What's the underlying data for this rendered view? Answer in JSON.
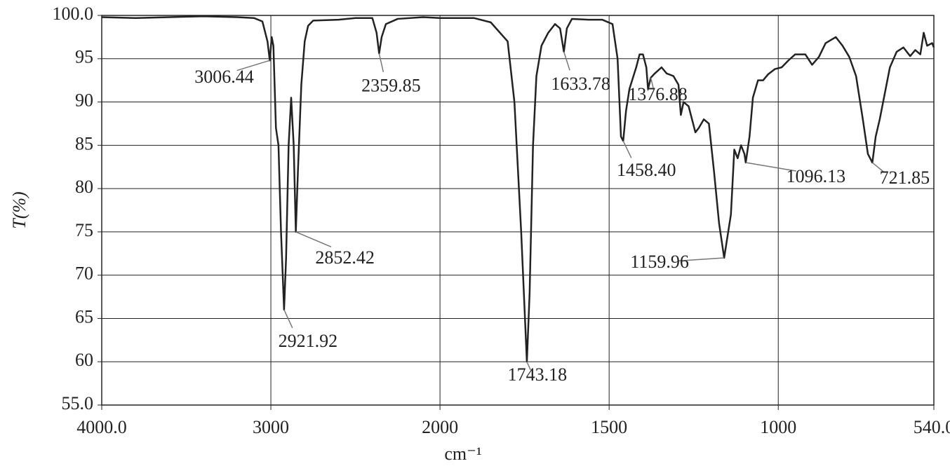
{
  "chart_data": {
    "type": "line",
    "x_label": "cm⁻¹",
    "y_label": "T(%)",
    "xlim": [
      4000,
      540
    ],
    "ylim": [
      55,
      100
    ],
    "x_scale_change": {
      "at": 2000,
      "factor": 2
    },
    "xticks": [
      {
        "value": 4000,
        "label": "4000.0"
      },
      3000,
      2000,
      1500,
      1000,
      {
        "value": 540,
        "label": "540.0"
      }
    ],
    "yticks": [
      {
        "value": 55,
        "label": "55.0"
      },
      60,
      65,
      70,
      75,
      80,
      85,
      90,
      95,
      {
        "value": 100,
        "label": "100.0"
      }
    ],
    "grid": true,
    "x": [
      4000,
      3800,
      3600,
      3400,
      3200,
      3100,
      3050,
      3020,
      3006.44,
      2995,
      2985,
      2970,
      2955,
      2940,
      2921.92,
      2910,
      2895,
      2880,
      2865,
      2852.42,
      2840,
      2820,
      2800,
      2780,
      2750,
      2600,
      2500,
      2400,
      2375,
      2359.85,
      2345,
      2320,
      2250,
      2100,
      2000,
      1900,
      1850,
      1800,
      1780,
      1760,
      1743.18,
      1735,
      1725,
      1715,
      1700,
      1680,
      1660,
      1645,
      1633.78,
      1625,
      1610,
      1560,
      1520,
      1490,
      1475,
      1465,
      1458.4,
      1450,
      1440,
      1420,
      1410,
      1400,
      1390,
      1385,
      1376.88,
      1365,
      1345,
      1330,
      1310,
      1295,
      1288,
      1280,
      1265,
      1245,
      1235,
      1220,
      1205,
      1190,
      1175,
      1159.96,
      1150,
      1140,
      1130,
      1120,
      1110,
      1100,
      1096.13,
      1085,
      1075,
      1060,
      1045,
      1030,
      1010,
      990,
      970,
      950,
      920,
      900,
      880,
      860,
      830,
      810,
      790,
      770,
      750,
      735,
      721.85,
      712,
      700,
      685,
      670,
      650,
      630,
      610,
      595,
      580,
      570,
      560,
      545,
      540
    ],
    "series": [
      {
        "color": "#222222",
        "values": [
          99.8,
          99.7,
          99.8,
          99.9,
          99.8,
          99.7,
          99.3,
          97,
          94.8,
          97.5,
          96.5,
          87,
          85,
          75,
          66,
          72,
          85,
          90.5,
          85,
          75,
          82,
          92,
          97,
          98.8,
          99.4,
          99.5,
          99.7,
          99.7,
          98,
          95.6,
          97.5,
          99,
          99.6,
          99.8,
          99.7,
          99.7,
          99.2,
          97,
          90,
          75,
          60,
          68,
          85,
          93,
          96.5,
          98,
          99,
          98.5,
          95.8,
          98.5,
          99.6,
          99.5,
          99.5,
          99,
          95,
          86,
          85.5,
          89,
          91.5,
          94,
          95.5,
          95.5,
          94,
          91.5,
          92.8,
          93.3,
          94,
          93.3,
          93,
          92,
          88.5,
          90,
          89.5,
          86.5,
          87,
          88,
          87.5,
          82,
          76,
          72,
          74.5,
          77,
          84.5,
          83.5,
          85,
          84,
          83,
          86,
          90.5,
          92.5,
          92.5,
          93.2,
          93.8,
          94,
          94.8,
          95.5,
          95.5,
          94.3,
          95.2,
          96.8,
          97.5,
          96.5,
          95.2,
          93,
          88,
          84,
          83,
          86,
          88,
          91,
          94,
          95.8,
          96.3,
          95.3,
          96,
          95.5,
          98,
          96.5,
          96.8,
          96.3
        ]
      }
    ],
    "annotations": [
      {
        "text": "3006.44",
        "x": 3006.44,
        "y": 94.8
      },
      {
        "text": "2921.92",
        "x": 2921.92,
        "y": 66
      },
      {
        "text": "2852.42",
        "x": 2852.42,
        "y": 75
      },
      {
        "text": "2359.85",
        "x": 2359.85,
        "y": 95.6
      },
      {
        "text": "1743.18",
        "x": 1743.18,
        "y": 60
      },
      {
        "text": "1633.78",
        "x": 1633.78,
        "y": 95.8
      },
      {
        "text": "1458.40",
        "x": 1458.4,
        "y": 85.5
      },
      {
        "text": "1376.88",
        "x": 1376.88,
        "y": 92.8
      },
      {
        "text": "1159.96",
        "x": 1159.96,
        "y": 72
      },
      {
        "text": "1096.13",
        "x": 1096.13,
        "y": 83
      },
      {
        "text": "721.85",
        "x": 721.85,
        "y": 83
      }
    ]
  }
}
